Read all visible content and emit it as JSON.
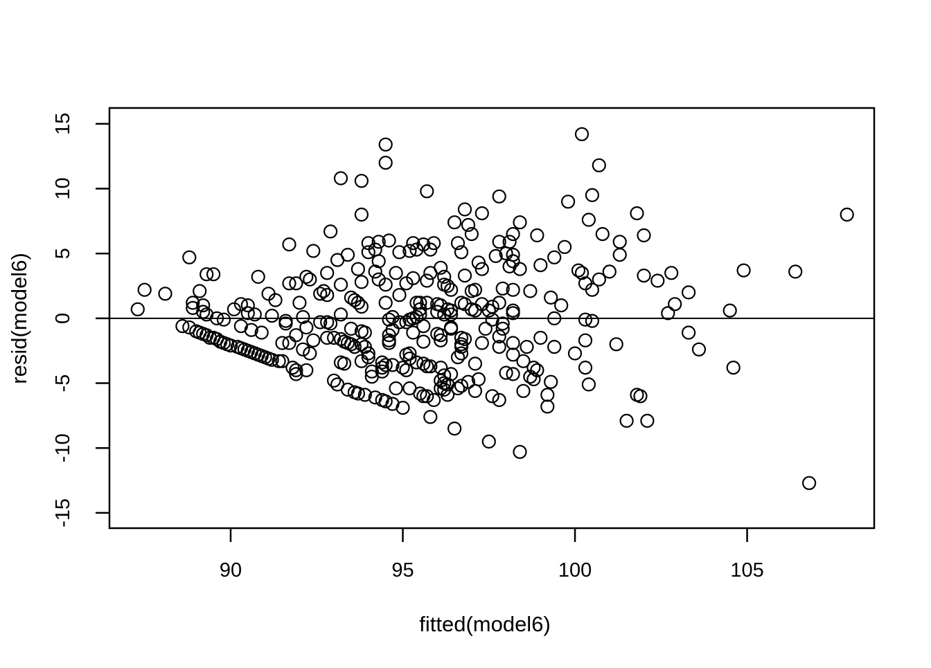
{
  "colors": {
    "foreground": "#000000",
    "background": "#ffffff"
  },
  "chart_data": {
    "type": "scatter",
    "title": "",
    "xlabel": "fitted(model6)",
    "ylabel": "resid(model6)",
    "x_ticks": [
      "90",
      "95",
      "100",
      "105"
    ],
    "x_tick_values": [
      90,
      95,
      100,
      105
    ],
    "y_ticks": [
      "-15",
      "-10",
      "-5",
      "0",
      "5",
      "10",
      "15"
    ],
    "y_tick_values": [
      -15,
      -10,
      -5,
      0,
      5,
      10,
      15
    ],
    "xlim": [
      86.48,
      108.69
    ],
    "ylim": [
      -16.18,
      16.22
    ],
    "grid": "off",
    "zero_line_y": 0,
    "marker": {
      "shape": "open-circle",
      "radius_px": 9,
      "stroke": "#000000",
      "stroke_width": 2.2
    },
    "points": [
      [
        100.2,
        14.2
      ],
      [
        94.5,
        13.4
      ],
      [
        94.5,
        12.0
      ],
      [
        100.7,
        11.8
      ],
      [
        93.2,
        10.8
      ],
      [
        93.8,
        10.6
      ],
      [
        95.7,
        9.8
      ],
      [
        100.5,
        9.5
      ],
      [
        97.8,
        9.4
      ],
      [
        99.8,
        9.0
      ],
      [
        96.8,
        8.4
      ],
      [
        97.3,
        8.1
      ],
      [
        101.8,
        8.1
      ],
      [
        93.8,
        8.0
      ],
      [
        107.9,
        8.0
      ],
      [
        100.4,
        7.6
      ],
      [
        98.4,
        7.4
      ],
      [
        96.5,
        7.4
      ],
      [
        96.9,
        7.2
      ],
      [
        92.9,
        6.7
      ],
      [
        97.0,
        6.5
      ],
      [
        98.2,
        6.5
      ],
      [
        100.8,
        6.5
      ],
      [
        98.9,
        6.4
      ],
      [
        102.0,
        6.4
      ],
      [
        94.6,
        6.0
      ],
      [
        94.3,
        5.9
      ],
      [
        97.8,
        5.9
      ],
      [
        98.1,
        5.9
      ],
      [
        101.3,
        5.9
      ],
      [
        94.0,
        5.8
      ],
      [
        95.3,
        5.8
      ],
      [
        95.9,
        5.8
      ],
      [
        96.6,
        5.8
      ],
      [
        91.7,
        5.7
      ],
      [
        95.6,
        5.7
      ],
      [
        99.7,
        5.5
      ],
      [
        92.4,
        5.2
      ],
      [
        94.2,
        5.3
      ],
      [
        95.4,
        5.3
      ],
      [
        95.8,
        5.3
      ],
      [
        94.9,
        5.1
      ],
      [
        96.7,
        5.1
      ],
      [
        94.0,
        5.1
      ],
      [
        98.0,
        5.0
      ],
      [
        93.4,
        4.9
      ],
      [
        95.2,
        5.2
      ],
      [
        98.2,
        4.9
      ],
      [
        97.7,
        4.8
      ],
      [
        88.8,
        4.7
      ],
      [
        99.4,
        4.7
      ],
      [
        101.3,
        4.9
      ],
      [
        93.1,
        4.5
      ],
      [
        94.3,
        4.4
      ],
      [
        98.2,
        4.4
      ],
      [
        97.2,
        4.3
      ],
      [
        99.0,
        4.1
      ],
      [
        98.1,
        4.0
      ],
      [
        96.1,
        3.9
      ],
      [
        97.3,
        3.8
      ],
      [
        93.7,
        3.8
      ],
      [
        98.4,
        3.8
      ],
      [
        104.9,
        3.7
      ],
      [
        100.1,
        3.7
      ],
      [
        106.4,
        3.6
      ],
      [
        94.2,
        3.6
      ],
      [
        101.0,
        3.6
      ],
      [
        92.8,
        3.5
      ],
      [
        94.8,
        3.5
      ],
      [
        95.8,
        3.5
      ],
      [
        100.2,
        3.5
      ],
      [
        102.8,
        3.5
      ],
      [
        89.3,
        3.4
      ],
      [
        89.5,
        3.4
      ],
      [
        96.8,
        3.3
      ],
      [
        102.0,
        3.3
      ],
      [
        90.8,
        3.2
      ],
      [
        92.2,
        3.2
      ],
      [
        96.2,
        3.2
      ],
      [
        95.3,
        3.1
      ],
      [
        94.3,
        3.0
      ],
      [
        92.3,
        3.0
      ],
      [
        100.7,
        3.0
      ],
      [
        95.7,
        2.9
      ],
      [
        102.4,
        2.9
      ],
      [
        93.8,
        2.8
      ],
      [
        95.1,
        2.7
      ],
      [
        91.7,
        2.7
      ],
      [
        91.9,
        2.7
      ],
      [
        100.3,
        2.7
      ],
      [
        94.5,
        2.6
      ],
      [
        96.2,
        2.6
      ],
      [
        93.2,
        2.6
      ],
      [
        96.3,
        2.5
      ],
      [
        97.1,
        2.2
      ],
      [
        96.4,
        2.2
      ],
      [
        87.5,
        2.2
      ],
      [
        98.2,
        2.2
      ],
      [
        100.5,
        2.2
      ],
      [
        89.1,
        2.1
      ],
      [
        92.7,
        2.1
      ],
      [
        97.0,
        2.1
      ],
      [
        98.7,
        2.1
      ],
      [
        103.3,
        2.0
      ],
      [
        88.1,
        1.9
      ],
      [
        91.1,
        1.9
      ],
      [
        92.6,
        1.9
      ],
      [
        97.9,
        2.3
      ],
      [
        92.8,
        1.8
      ],
      [
        94.9,
        1.8
      ],
      [
        93.5,
        1.6
      ],
      [
        99.3,
        1.6
      ],
      [
        91.3,
        1.4
      ],
      [
        93.6,
        1.4
      ],
      [
        88.9,
        1.2
      ],
      [
        93.7,
        1.2
      ],
      [
        94.5,
        1.2
      ],
      [
        95.4,
        1.2
      ],
      [
        95.5,
        1.2
      ],
      [
        95.7,
        1.2
      ],
      [
        92.0,
        1.2
      ],
      [
        96.7,
        1.2
      ],
      [
        97.8,
        1.2
      ],
      [
        90.3,
        1.1
      ],
      [
        96.0,
        1.1
      ],
      [
        96.8,
        1.1
      ],
      [
        97.3,
        1.1
      ],
      [
        102.9,
        1.1
      ],
      [
        89.2,
        1.0
      ],
      [
        90.5,
        1.0
      ],
      [
        96.1,
        1.0
      ],
      [
        99.6,
        1.0
      ],
      [
        93.8,
        0.9
      ],
      [
        97.6,
        0.9
      ],
      [
        88.9,
        0.8
      ],
      [
        87.3,
        0.7
      ],
      [
        90.1,
        0.7
      ],
      [
        95.5,
        0.7
      ],
      [
        96.3,
        0.7
      ],
      [
        97.0,
        0.7
      ],
      [
        96.4,
        0.6
      ],
      [
        97.1,
        0.6
      ],
      [
        97.5,
        0.6
      ],
      [
        98.2,
        0.6
      ],
      [
        104.5,
        0.6
      ],
      [
        89.2,
        0.5
      ],
      [
        90.5,
        0.4
      ],
      [
        96.0,
        0.5
      ],
      [
        102.7,
        0.4
      ],
      [
        98.2,
        0.4
      ],
      [
        89.3,
        0.3
      ],
      [
        90.7,
        0.3
      ],
      [
        93.2,
        0.3
      ],
      [
        95.5,
        0.3
      ],
      [
        96.2,
        0.3
      ],
      [
        96.4,
        0.3
      ],
      [
        91.2,
        0.2
      ],
      [
        92.1,
        0.1
      ],
      [
        94.7,
        0.1
      ],
      [
        95.4,
        0.1
      ],
      [
        89.6,
        0.0
      ],
      [
        95.3,
        0.0
      ],
      [
        99.4,
        0.0
      ],
      [
        89.8,
        -0.1
      ],
      [
        94.6,
        -0.1
      ],
      [
        100.3,
        -0.1
      ],
      [
        95.2,
        -0.1
      ],
      [
        97.6,
        -0.1
      ],
      [
        91.6,
        -0.2
      ],
      [
        100.5,
        -0.2
      ],
      [
        92.6,
        -0.3
      ],
      [
        92.8,
        -0.3
      ],
      [
        94.9,
        -0.3
      ],
      [
        95.1,
        -0.3
      ],
      [
        92.9,
        -0.4
      ],
      [
        91.6,
        -0.4
      ],
      [
        97.9,
        -0.4
      ],
      [
        88.6,
        -0.6
      ],
      [
        90.3,
        -0.6
      ],
      [
        95.6,
        -0.6
      ],
      [
        92.2,
        -0.7
      ],
      [
        88.8,
        -0.7
      ],
      [
        96.4,
        -0.7
      ],
      [
        97.9,
        -0.8
      ],
      [
        90.6,
        -0.9
      ],
      [
        94.7,
        -0.9
      ],
      [
        96.4,
        -0.8
      ],
      [
        97.4,
        -0.8
      ],
      [
        89.0,
        -1.0
      ],
      [
        93.5,
        -0.8
      ],
      [
        93.8,
        -1.0
      ],
      [
        89.1,
        -1.1
      ],
      [
        90.9,
        -1.1
      ],
      [
        93.9,
        -1.1
      ],
      [
        95.3,
        -1.1
      ],
      [
        103.3,
        -1.1
      ],
      [
        89.2,
        -1.2
      ],
      [
        96.0,
        -1.2
      ],
      [
        89.3,
        -1.3
      ],
      [
        94.6,
        -1.3
      ],
      [
        96.1,
        -1.3
      ],
      [
        91.9,
        -1.3
      ],
      [
        89.4,
        -1.5
      ],
      [
        92.8,
        -1.5
      ],
      [
        93.0,
        -1.5
      ],
      [
        96.7,
        -1.5
      ],
      [
        99.0,
        -1.5
      ],
      [
        89.5,
        -1.5
      ],
      [
        92.4,
        -1.7
      ],
      [
        94.6,
        -1.7
      ],
      [
        96.1,
        -1.7
      ],
      [
        100.3,
        -1.7
      ],
      [
        89.6,
        -1.6
      ],
      [
        93.2,
        -1.6
      ],
      [
        96.8,
        -1.6
      ],
      [
        89.7,
        -1.8
      ],
      [
        93.3,
        -1.8
      ],
      [
        95.6,
        -1.8
      ],
      [
        97.8,
        -1.4
      ],
      [
        89.8,
        -1.9
      ],
      [
        93.4,
        -1.9
      ],
      [
        94.6,
        -1.9
      ],
      [
        97.3,
        -1.9
      ],
      [
        98.2,
        -1.9
      ],
      [
        91.5,
        -1.9
      ],
      [
        91.7,
        -1.9
      ],
      [
        89.9,
        -2.0
      ],
      [
        93.5,
        -2.0
      ],
      [
        93.8,
        -2.0
      ],
      [
        96.7,
        -2.0
      ],
      [
        101.2,
        -2.0
      ],
      [
        90.0,
        -2.1
      ],
      [
        90.2,
        -2.2
      ],
      [
        93.6,
        -2.2
      ],
      [
        93.9,
        -2.2
      ],
      [
        96.7,
        -2.2
      ],
      [
        97.8,
        -2.2
      ],
      [
        98.6,
        -2.2
      ],
      [
        99.4,
        -2.2
      ],
      [
        90.3,
        -2.3
      ],
      [
        90.4,
        -2.4
      ],
      [
        92.1,
        -2.4
      ],
      [
        103.6,
        -2.4
      ],
      [
        90.5,
        -2.5
      ],
      [
        90.6,
        -2.6
      ],
      [
        90.7,
        -2.7
      ],
      [
        92.3,
        -2.7
      ],
      [
        94.0,
        -2.7
      ],
      [
        95.2,
        -2.7
      ],
      [
        96.7,
        -2.7
      ],
      [
        100.0,
        -2.7
      ],
      [
        90.8,
        -2.8
      ],
      [
        95.1,
        -2.8
      ],
      [
        98.2,
        -2.8
      ],
      [
        90.9,
        -2.9
      ],
      [
        91.0,
        -3.0
      ],
      [
        94.0,
        -3.0
      ],
      [
        96.6,
        -3.0
      ],
      [
        91.1,
        -3.1
      ],
      [
        95.2,
        -3.1
      ],
      [
        91.2,
        -3.2
      ],
      [
        91.4,
        -3.3
      ],
      [
        91.5,
        -3.3
      ],
      [
        93.8,
        -3.3
      ],
      [
        98.5,
        -3.3
      ],
      [
        93.2,
        -3.4
      ],
      [
        94.4,
        -3.4
      ],
      [
        95.4,
        -3.4
      ],
      [
        93.3,
        -3.5
      ],
      [
        97.1,
        -3.5
      ],
      [
        94.5,
        -3.6
      ],
      [
        94.7,
        -3.6
      ],
      [
        95.6,
        -3.5
      ],
      [
        95.7,
        -3.7
      ],
      [
        95.8,
        -3.7
      ],
      [
        94.4,
        -3.8
      ],
      [
        91.8,
        -3.8
      ],
      [
        95.0,
        -3.8
      ],
      [
        96.1,
        -3.8
      ],
      [
        104.6,
        -3.8
      ],
      [
        100.3,
        -3.8
      ],
      [
        98.8,
        -3.8
      ],
      [
        92.2,
        -4.0
      ],
      [
        95.1,
        -4.0
      ],
      [
        91.9,
        -4.0
      ],
      [
        98.9,
        -4.0
      ],
      [
        94.1,
        -4.1
      ],
      [
        94.4,
        -4.1
      ],
      [
        98.0,
        -4.2
      ],
      [
        98.2,
        -4.3
      ],
      [
        96.4,
        -4.3
      ],
      [
        91.9,
        -4.3
      ],
      [
        96.2,
        -4.4
      ],
      [
        94.1,
        -4.5
      ],
      [
        98.7,
        -4.5
      ],
      [
        97.2,
        -4.7
      ],
      [
        98.8,
        -4.7
      ],
      [
        93.0,
        -4.8
      ],
      [
        96.1,
        -4.8
      ],
      [
        96.9,
        -4.9
      ],
      [
        99.3,
        -4.9
      ],
      [
        96.2,
        -5.0
      ],
      [
        93.1,
        -5.1
      ],
      [
        96.3,
        -5.1
      ],
      [
        100.4,
        -5.1
      ],
      [
        96.7,
        -5.2
      ],
      [
        93.4,
        -5.5
      ],
      [
        94.8,
        -5.4
      ],
      [
        95.2,
        -5.4
      ],
      [
        96.1,
        -5.4
      ],
      [
        96.6,
        -5.4
      ],
      [
        93.6,
        -5.7
      ],
      [
        93.7,
        -5.8
      ],
      [
        95.5,
        -5.8
      ],
      [
        98.5,
        -5.6
      ],
      [
        97.1,
        -5.6
      ],
      [
        93.9,
        -5.9
      ],
      [
        95.6,
        -6.0
      ],
      [
        95.7,
        -6.0
      ],
      [
        96.2,
        -5.5
      ],
      [
        96.3,
        -5.9
      ],
      [
        99.2,
        -5.9
      ],
      [
        101.8,
        -5.9
      ],
      [
        101.9,
        -6.0
      ],
      [
        97.6,
        -6.0
      ],
      [
        97.8,
        -6.3
      ],
      [
        94.2,
        -6.1
      ],
      [
        95.9,
        -6.3
      ],
      [
        94.4,
        -6.3
      ],
      [
        94.5,
        -6.4
      ],
      [
        94.7,
        -6.6
      ],
      [
        99.2,
        -6.8
      ],
      [
        95.0,
        -6.9
      ],
      [
        95.8,
        -7.6
      ],
      [
        101.5,
        -7.9
      ],
      [
        102.1,
        -7.9
      ],
      [
        96.5,
        -8.5
      ],
      [
        97.5,
        -9.5
      ],
      [
        98.4,
        -10.3
      ],
      [
        106.8,
        -12.7
      ]
    ]
  }
}
